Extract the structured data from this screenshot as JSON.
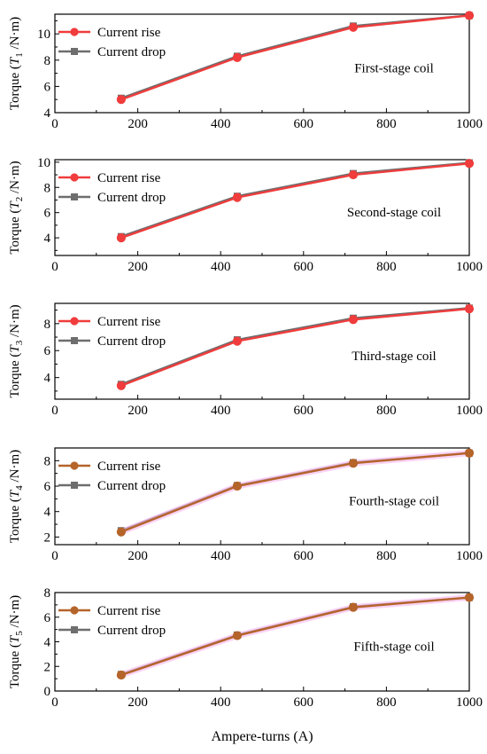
{
  "chart_data": [
    {
      "type": "line",
      "ylabel": {
        "pre": "Torque (",
        "ital": "T",
        "sub": "1",
        "post": " /N·m)"
      },
      "annotation": "First-stage coil",
      "xlim": [
        0,
        1000
      ],
      "ylim": [
        4,
        11.5
      ],
      "yticks": [
        4,
        6,
        8,
        10
      ],
      "xticks": [
        0,
        200,
        400,
        600,
        800,
        1000
      ],
      "series": [
        {
          "name": "Current rise",
          "marker": "circle",
          "color": "#f03c3c",
          "x": [
            160,
            440,
            720,
            1000
          ],
          "y": [
            5.0,
            8.2,
            10.5,
            11.4
          ]
        },
        {
          "name": "Current drop",
          "marker": "square",
          "color": "#6e6e6e",
          "x": [
            160,
            440,
            720,
            1000
          ],
          "y": [
            5.1,
            8.3,
            10.6,
            11.4
          ]
        }
      ]
    },
    {
      "type": "line",
      "ylabel": {
        "pre": "Torque (",
        "ital": "T",
        "sub": "2",
        "post": " /N·m)"
      },
      "annotation": "Second-stage coil",
      "xlim": [
        0,
        1000
      ],
      "ylim": [
        2.6,
        10.2
      ],
      "yticks": [
        4,
        6,
        8,
        10
      ],
      "xticks": [
        0,
        200,
        400,
        600,
        800,
        1000
      ],
      "series": [
        {
          "name": "Current rise",
          "marker": "circle",
          "color": "#f03c3c",
          "x": [
            160,
            440,
            720,
            1000
          ],
          "y": [
            4.0,
            7.2,
            9.0,
            9.9
          ]
        },
        {
          "name": "Current drop",
          "marker": "square",
          "color": "#6e6e6e",
          "x": [
            160,
            440,
            720,
            1000
          ],
          "y": [
            4.1,
            7.3,
            9.1,
            9.95
          ]
        }
      ]
    },
    {
      "type": "line",
      "ylabel": {
        "pre": "Torque (",
        "ital": "T",
        "sub": "3",
        "post": " /N·m)"
      },
      "annotation": "Third-stage coil",
      "xlim": [
        0,
        1000
      ],
      "ylim": [
        2.4,
        9.5
      ],
      "yticks": [
        4,
        6,
        8
      ],
      "xticks": [
        0,
        200,
        400,
        600,
        800,
        1000
      ],
      "series": [
        {
          "name": "Current rise",
          "marker": "circle",
          "color": "#f03c3c",
          "x": [
            160,
            440,
            720,
            1000
          ],
          "y": [
            3.4,
            6.7,
            8.3,
            9.1
          ]
        },
        {
          "name": "Current drop",
          "marker": "square",
          "color": "#6e6e6e",
          "x": [
            160,
            440,
            720,
            1000
          ],
          "y": [
            3.5,
            6.8,
            8.4,
            9.15
          ]
        }
      ]
    },
    {
      "type": "line",
      "ylabel": {
        "pre": "Torque (",
        "ital": "T",
        "sub": "4",
        "post": " /N·m)"
      },
      "annotation": "Fourth-stage coil",
      "xlim": [
        0,
        1000
      ],
      "ylim": [
        1.4,
        9.0
      ],
      "yticks": [
        2,
        4,
        6,
        8
      ],
      "xticks": [
        0,
        200,
        400,
        600,
        800,
        1000
      ],
      "series": [
        {
          "name": "Current rise",
          "marker": "circle",
          "color": "#b5642a",
          "x": [
            160,
            440,
            720,
            1000
          ],
          "y": [
            2.4,
            6.0,
            7.8,
            8.6
          ]
        },
        {
          "name": "Current drop",
          "marker": "square",
          "color": "#6e6e6e",
          "x": [
            160,
            440,
            720,
            1000
          ],
          "y": [
            2.5,
            6.05,
            7.85,
            8.6
          ]
        }
      ]
    },
    {
      "type": "line",
      "ylabel": {
        "pre": "Torque (",
        "ital": "T",
        "sub": "5",
        "post": " /N·m)"
      },
      "annotation": "Fifth-stage coil",
      "xlabel": "Ampere-turns (A)",
      "xlim": [
        0,
        1000
      ],
      "ylim": [
        0,
        8
      ],
      "yticks": [
        0,
        2,
        4,
        6,
        8
      ],
      "xticks": [
        0,
        200,
        400,
        600,
        800,
        1000
      ],
      "series": [
        {
          "name": "Current rise",
          "marker": "circle",
          "color": "#b5642a",
          "x": [
            160,
            440,
            720,
            1000
          ],
          "y": [
            1.3,
            4.5,
            6.8,
            7.6
          ]
        },
        {
          "name": "Current drop",
          "marker": "square",
          "color": "#6e6e6e",
          "x": [
            160,
            440,
            720,
            1000
          ],
          "y": [
            1.35,
            4.55,
            6.85,
            7.6
          ]
        }
      ]
    }
  ]
}
